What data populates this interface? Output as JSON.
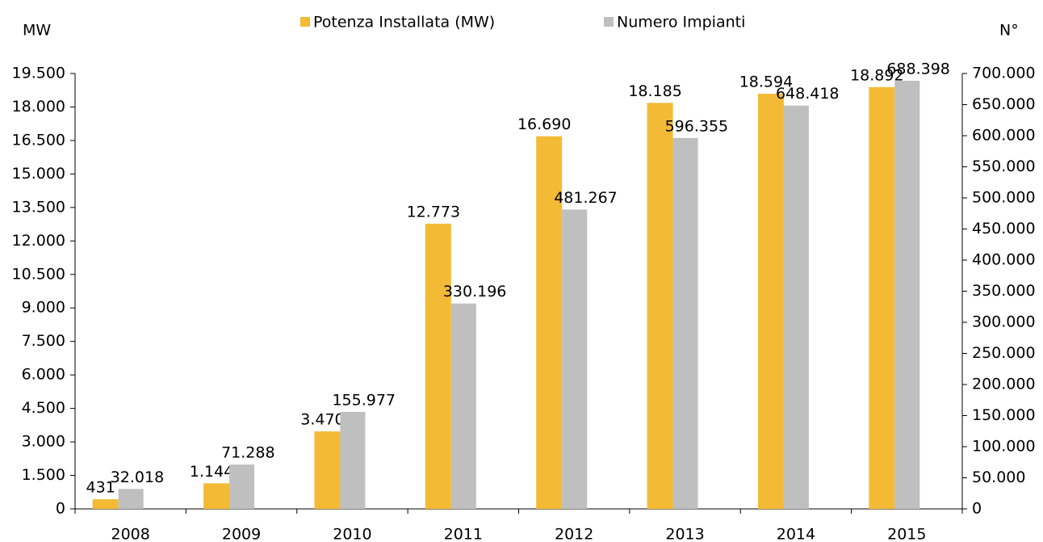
{
  "chart_data": {
    "type": "bar",
    "y_axis_label": "MW",
    "y2_axis_label": "N°",
    "categories": [
      "2008",
      "2009",
      "2010",
      "2011",
      "2012",
      "2013",
      "2014",
      "2015"
    ],
    "series": [
      {
        "name": "Potenza Installata (MW)",
        "color": "#f3bb35",
        "axis": "y",
        "values": [
          431,
          1144,
          3470,
          12773,
          16690,
          18185,
          18594,
          18892
        ],
        "value_labels": [
          "431",
          "1.144",
          "3.470",
          "12.773",
          "16.690",
          "18.185",
          "18.594",
          "18.892"
        ]
      },
      {
        "name": "Numero Impianti",
        "color": "#bfbfbf",
        "axis": "y2",
        "values": [
          32018,
          71288,
          155977,
          330196,
          481267,
          596355,
          648418,
          688398
        ],
        "value_labels": [
          "32.018",
          "71.288",
          "155.977",
          "330.196",
          "481.267",
          "596.355",
          "648.418",
          "688.398"
        ]
      }
    ],
    "ylim": [
      0,
      19500
    ],
    "yticks": [
      0,
      {
        "value": 1500,
        "label": "1.500"
      },
      {
        "value": 3000,
        "label": "3.000"
      },
      {
        "value": 4500,
        "label": "4.500"
      },
      {
        "value": 6000,
        "label": "6.000"
      },
      {
        "value": 7500,
        "label": "7.500"
      },
      {
        "value": 9000,
        "label": "9.000"
      },
      {
        "value": 10500,
        "label": "10.500"
      },
      {
        "value": 12000,
        "label": "12.000"
      },
      {
        "value": 13500,
        "label": "13.500"
      },
      {
        "value": 15000,
        "label": "15.000"
      },
      {
        "value": 16500,
        "label": "16.500"
      },
      {
        "value": 18000,
        "label": "18.000"
      },
      {
        "value": 19500,
        "label": "19.500"
      }
    ],
    "y2lim": [
      0,
      700000
    ],
    "y2ticks": [
      0,
      {
        "value": 50000,
        "label": "50.000"
      },
      {
        "value": 100000,
        "label": "100.000"
      },
      {
        "value": 150000,
        "label": "150.000"
      },
      {
        "value": 200000,
        "label": "200.000"
      },
      {
        "value": 250000,
        "label": "250.000"
      },
      {
        "value": 300000,
        "label": "300.000"
      },
      {
        "value": 350000,
        "label": "350.000"
      },
      {
        "value": 400000,
        "label": "400.000"
      },
      {
        "value": 450000,
        "label": "450.000"
      },
      {
        "value": 500000,
        "label": "500.000"
      },
      {
        "value": 550000,
        "label": "550.000"
      },
      {
        "value": 600000,
        "label": "600.000"
      },
      {
        "value": 650000,
        "label": "650.000"
      },
      {
        "value": 700000,
        "label": "700.000"
      }
    ],
    "legend": "top",
    "grid": false
  }
}
